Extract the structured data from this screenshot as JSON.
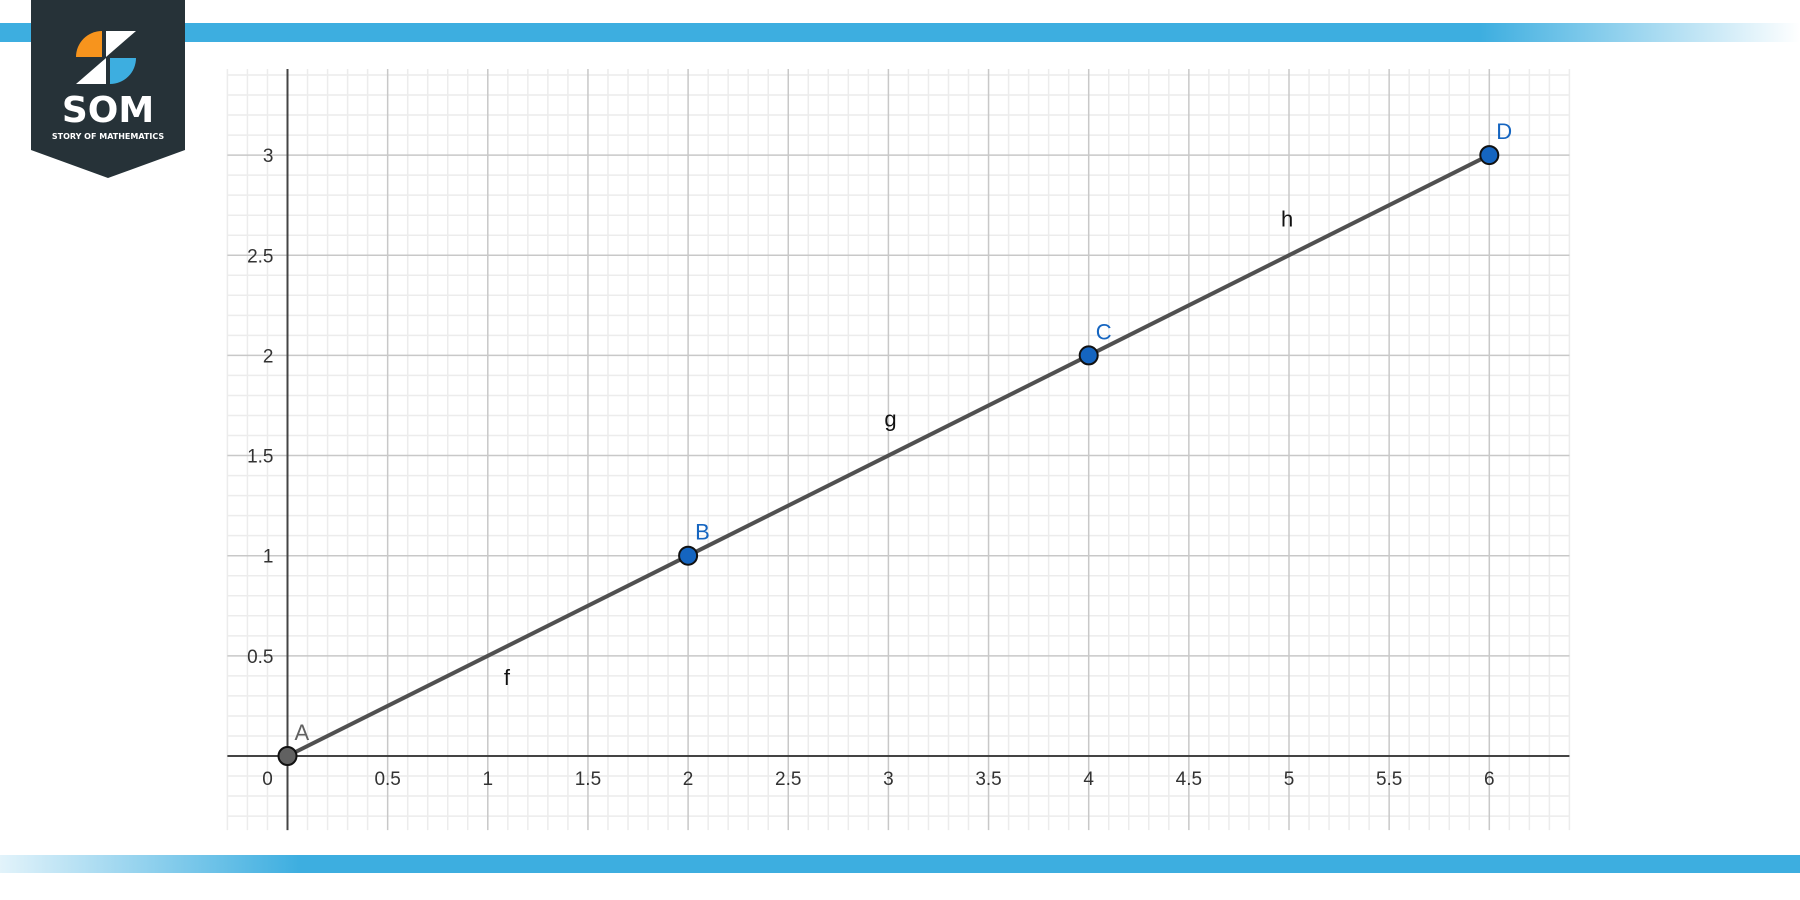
{
  "logo": {
    "text": "SOM",
    "subtitle": "STORY OF MATHEMATICS"
  },
  "colors": {
    "bar": "#3daee0",
    "logo_bg": "#263238",
    "logo_orange": "#f7941d",
    "point_blue": "#1565c0",
    "point_origin": "#616161",
    "segment": "#505050",
    "grid_major": "#c8c8c8",
    "grid_minor": "#ececec"
  },
  "chart_data": {
    "type": "line",
    "xlim": [
      -0.3,
      6.4
    ],
    "ylim": [
      -0.37,
      3.43
    ],
    "grid": true,
    "x_ticks": [
      "0",
      "0.5",
      "1",
      "1.5",
      "2",
      "2.5",
      "3",
      "3.5",
      "4",
      "4.5",
      "5",
      "5.5",
      "6"
    ],
    "y_ticks": [
      "0.5",
      "1",
      "1.5",
      "2",
      "2.5",
      "3"
    ],
    "points": [
      {
        "label": "A",
        "x": 0,
        "y": 0
      },
      {
        "label": "B",
        "x": 2,
        "y": 1
      },
      {
        "label": "C",
        "x": 4,
        "y": 2
      },
      {
        "label": "D",
        "x": 6,
        "y": 3
      }
    ],
    "segments": [
      {
        "label": "f",
        "from": "A",
        "to": "B"
      },
      {
        "label": "g",
        "from": "B",
        "to": "C"
      },
      {
        "label": "h",
        "from": "C",
        "to": "D"
      }
    ]
  }
}
